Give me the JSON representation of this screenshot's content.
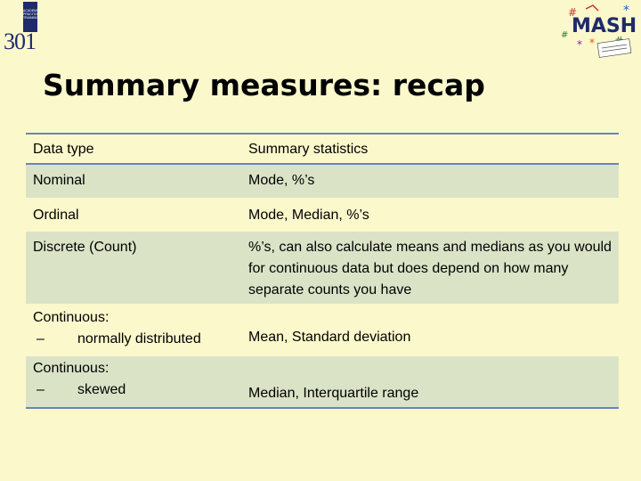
{
  "logo_left": {
    "block_text": "ACADEMIC PRACTICE TRAINING",
    "number": "301"
  },
  "logo_right": {
    "name": "mash-logo",
    "caption": "MASH"
  },
  "title": "Summary measures: recap",
  "table": {
    "headers": [
      "Data type",
      "Summary statistics"
    ],
    "rows": [
      {
        "type": "Nominal",
        "sub": "",
        "stats": "Mode, %’s"
      },
      {
        "type": "Ordinal",
        "sub": "",
        "stats": "Mode, Median, %’s"
      },
      {
        "type": "Discrete (Count)",
        "sub": "",
        "stats": "%’s, can also calculate means and medians as you would for continuous data but does depend on how many separate counts you have"
      },
      {
        "type": "Continuous:",
        "sub": "normally distributed",
        "dash": "–",
        "stats": "Mean, Standard deviation"
      },
      {
        "type": "Continuous:",
        "sub": "skewed",
        "dash": "–",
        "stats": "Median, Interquartile range"
      }
    ]
  }
}
